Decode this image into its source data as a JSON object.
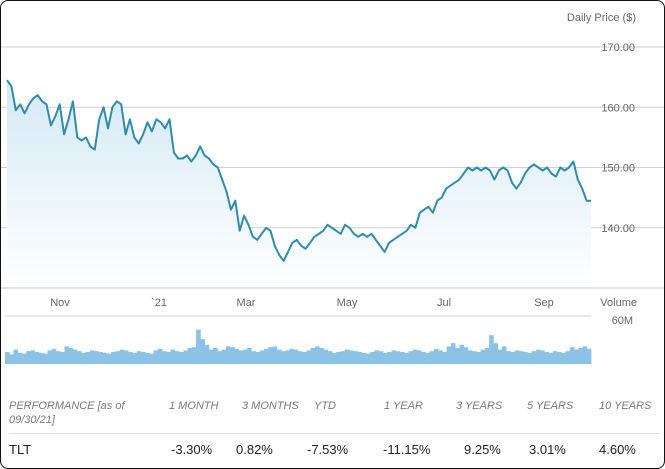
{
  "colors": {
    "line": "#2f8cad",
    "fill_top": "#d4e9f5",
    "volume": "#8cc2e6",
    "grid": "#cfcfcf"
  },
  "chart_data": [
    {
      "type": "line",
      "ylabel": "Daily Price ($)",
      "y_ticks": [
        "170.00",
        "160.00",
        "150.00",
        "140.00"
      ],
      "y_tick_values": [
        170,
        160,
        150,
        140
      ],
      "ylim": [
        130,
        172
      ],
      "x_tick_labels": [
        "Nov",
        "`21",
        "Mar",
        "May",
        "Jul",
        "Sep"
      ],
      "grid": true,
      "series": [
        {
          "values": [
            164.5,
            163.5,
            159.5,
            160.5,
            159.0,
            160.5,
            161.5,
            162.0,
            161.0,
            160.5,
            157.0,
            158.5,
            160.5,
            155.5,
            158.0,
            161.0,
            155.0,
            154.5,
            155.0,
            153.5,
            153.0,
            158.0,
            160.0,
            156.5,
            160.0,
            161.0,
            160.5,
            155.5,
            158.0,
            155.0,
            154.0,
            155.5,
            157.5,
            156.0,
            158.0,
            157.5,
            156.5,
            158.0,
            152.5,
            151.5,
            151.5,
            152.0,
            151.0,
            152.0,
            153.5,
            152.0,
            151.5,
            150.5,
            150.0,
            148.0,
            146.0,
            143.0,
            144.5,
            139.5,
            142.0,
            140.5,
            138.5,
            138.0,
            139.0,
            140.0,
            139.5,
            137.0,
            135.5,
            134.5,
            136.0,
            137.5,
            138.0,
            137.0,
            136.5,
            137.5,
            138.5,
            139.0,
            139.5,
            140.5,
            140.0,
            139.5,
            139.0,
            140.5,
            140.0,
            139.0,
            138.5,
            139.0,
            138.5,
            139.0,
            138.0,
            137.0,
            136.0,
            137.5,
            138.0,
            138.5,
            139.0,
            139.5,
            140.5,
            140.0,
            142.5,
            143.0,
            143.5,
            142.5,
            144.5,
            145.0,
            146.5,
            147.0,
            147.5,
            148.0,
            149.0,
            150.0,
            149.5,
            150.0,
            149.5,
            150.0,
            149.5,
            148.0,
            149.5,
            150.0,
            149.5,
            147.5,
            146.5,
            147.5,
            149.0,
            150.0,
            150.5,
            150.0,
            149.5,
            150.0,
            149.0,
            148.5,
            150.0,
            149.5,
            150.0,
            151.0,
            148.0,
            146.5,
            144.5,
            144.5
          ]
        }
      ]
    },
    {
      "type": "bar",
      "title": "Volume",
      "y_ticks": [
        "60M"
      ],
      "ylim": [
        0,
        60
      ],
      "values": [
        15,
        12,
        18,
        14,
        13,
        16,
        17,
        15,
        14,
        13,
        17,
        19,
        16,
        15,
        22,
        20,
        18,
        16,
        14,
        15,
        17,
        16,
        15,
        14,
        13,
        15,
        16,
        18,
        17,
        15,
        14,
        16,
        15,
        14,
        13,
        17,
        19,
        16,
        15,
        18,
        16,
        15,
        17,
        20,
        21,
        43,
        31,
        24,
        18,
        20,
        16,
        18,
        22,
        21,
        19,
        17,
        18,
        20,
        16,
        15,
        17,
        19,
        21,
        22,
        18,
        16,
        17,
        19,
        18,
        16,
        15,
        17,
        20,
        22,
        20,
        18,
        16,
        14,
        15,
        16,
        18,
        17,
        16,
        15,
        14,
        13,
        15,
        17,
        16,
        14,
        15,
        17,
        16,
        15,
        14,
        16,
        18,
        17,
        15,
        14,
        16,
        19,
        17,
        15,
        22,
        26,
        20,
        24,
        21,
        17,
        16,
        15,
        18,
        20,
        36,
        26,
        18,
        22,
        16,
        15,
        17,
        16,
        15,
        14,
        16,
        18,
        17,
        15,
        14,
        16,
        15,
        14,
        16,
        21,
        18,
        20,
        22,
        19
      ]
    }
  ],
  "performance": {
    "headers": [
      "PERFORMANCE [as of 09/30/21]",
      "1 MONTH",
      "3 MONTHS",
      "YTD",
      "1 YEAR",
      "3 YEARS",
      "5 YEARS",
      "10 YEARS"
    ],
    "rows": [
      {
        "ticker": "TLT",
        "values": [
          "-3.30%",
          "0.82%",
          "-7.53%",
          "-11.15%",
          "9.25%",
          "3.01%",
          "4.60%"
        ]
      }
    ]
  }
}
